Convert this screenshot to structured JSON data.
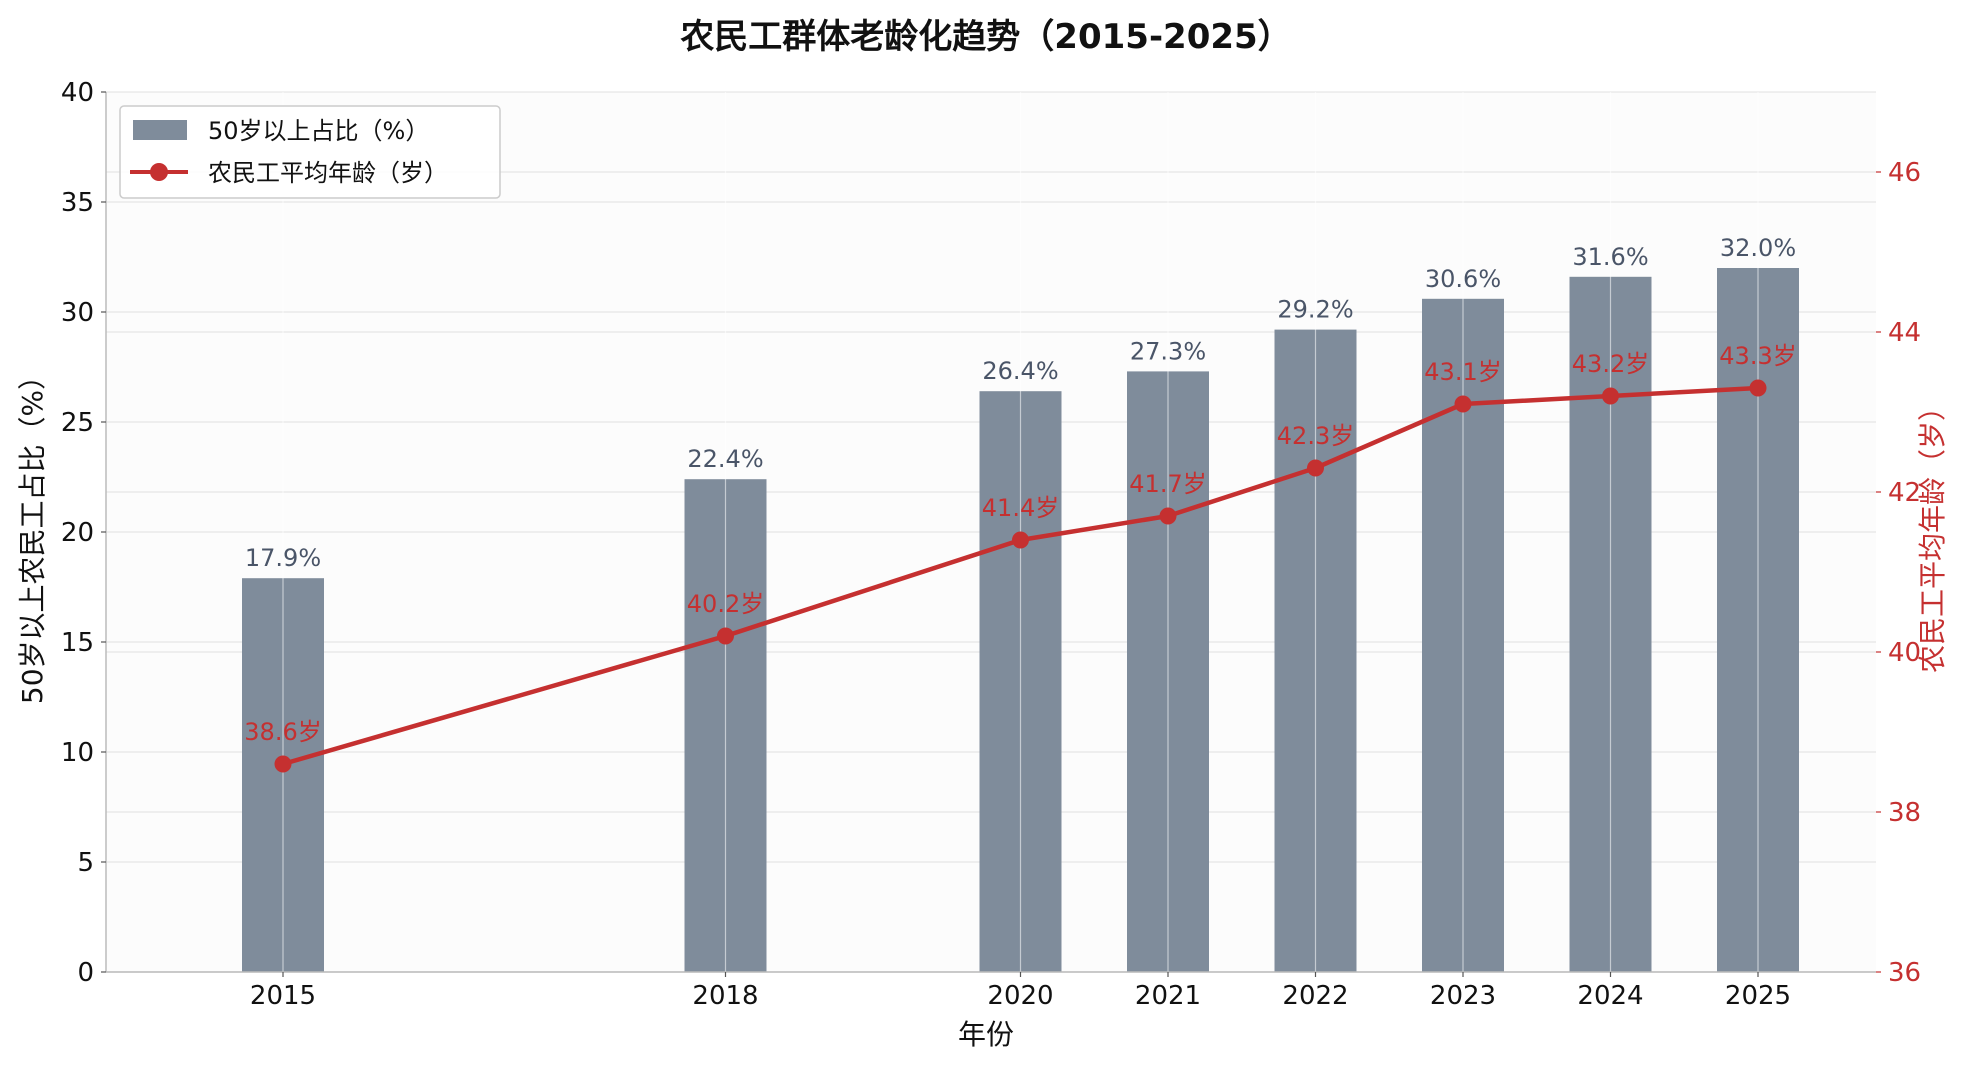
{
  "chart_data": {
    "type": "bar",
    "title": "农民工群体老龄化趋势（2015-2025）",
    "xlabel": "年份",
    "ylabel": "50岁以上农民工占比（%）",
    "y2label": "农民工平均年龄（岁）",
    "categories": [
      "2015",
      "2018",
      "2020",
      "2021",
      "2022",
      "2023",
      "2024",
      "2025"
    ],
    "x": [
      2015,
      2018,
      2020,
      2021,
      2022,
      2023,
      2024,
      2025
    ],
    "xlim": [
      2013.8,
      2025.8
    ],
    "ylim": [
      0,
      40
    ],
    "y2lim": [
      36,
      47
    ],
    "yticks": [
      0,
      5,
      10,
      15,
      20,
      25,
      30,
      35,
      40
    ],
    "y2ticks": [
      36,
      38,
      40,
      42,
      44,
      46
    ],
    "grid": true,
    "legend_position": "top-left",
    "series": [
      {
        "name": "50岁以上占比（%）",
        "type": "bar",
        "axis": "left",
        "values": [
          17.9,
          22.4,
          26.4,
          27.3,
          29.2,
          30.6,
          31.6,
          32.0
        ],
        "labels": [
          "17.9%",
          "22.4%",
          "26.4%",
          "27.3%",
          "29.2%",
          "30.6%",
          "31.6%",
          "32.0%"
        ],
        "color": "#7f8c9b"
      },
      {
        "name": "农民工平均年龄（岁）",
        "type": "line",
        "axis": "right",
        "values": [
          38.6,
          40.2,
          41.4,
          41.7,
          42.3,
          43.1,
          43.2,
          43.3
        ],
        "labels": [
          "38.6岁",
          "40.2岁",
          "41.4岁",
          "41.7岁",
          "42.3岁",
          "43.1岁",
          "43.2岁",
          "43.3岁"
        ],
        "color": "#c53030"
      }
    ],
    "colors": {
      "bar_label": "#4a5568",
      "right_axis": "#c53030",
      "grid": "#e6e6e6",
      "plot_bg": "#fcfcfc"
    }
  }
}
